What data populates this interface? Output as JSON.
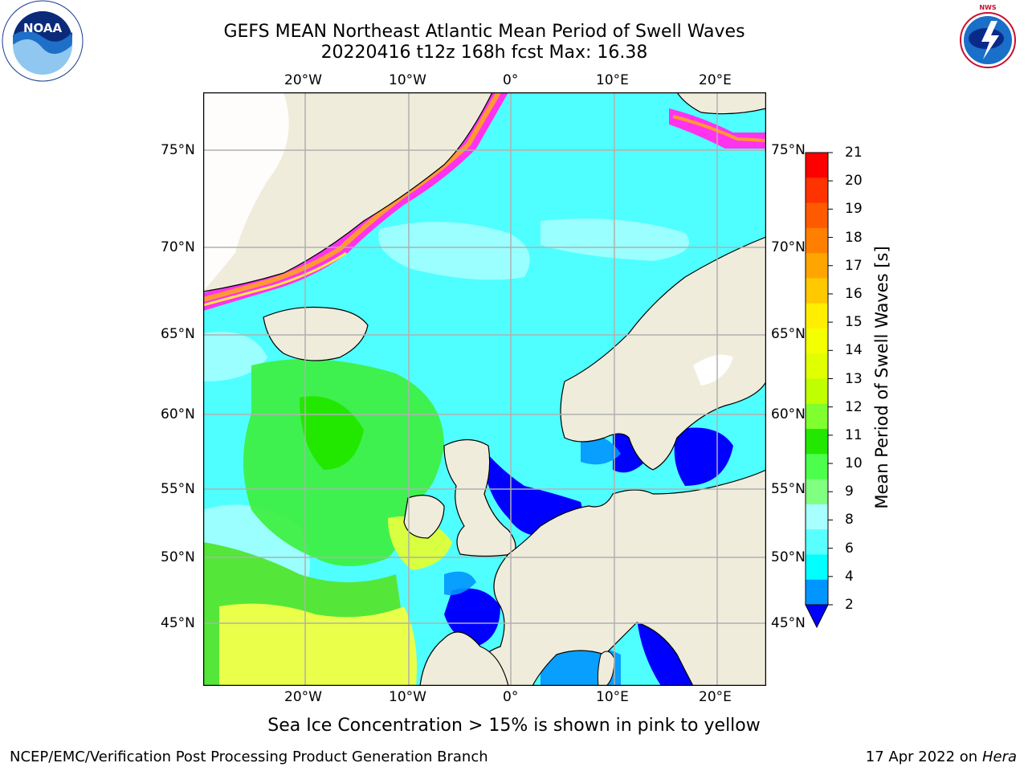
{
  "title": {
    "line1": "GEFS MEAN Northeast Atlantic Mean Period of Swell Waves",
    "line2": "20220416 t12z 168h fcst   Max: 16.38"
  },
  "logos": {
    "left": "noaa-logo",
    "right": "national-weather-service-logo",
    "noaa_text": "NOAA",
    "nws_text": "NATIONAL WEATHER SERVICE"
  },
  "map": {
    "lon_ticks_top": [
      "20°W",
      "10°W",
      "0°",
      "10°E",
      "20°E"
    ],
    "lon_ticks_bottom": [
      "20°W",
      "10°W",
      "0°",
      "10°E",
      "20°E"
    ],
    "lat_ticks_left": [
      "75°N",
      "70°N",
      "65°N",
      "60°N",
      "55°N",
      "50°N",
      "45°N"
    ],
    "lat_ticks_right": [
      "75°N",
      "70°N",
      "65°N",
      "60°N",
      "55°N",
      "50°N",
      "45°N"
    ],
    "colors": {
      "land": "#efecdb",
      "ice_pink": "#ff33ee",
      "ice_orange": "#ff9933",
      "ice_yellow": "#ffe84a",
      "grid": "#b0b0b0"
    }
  },
  "colorbar": {
    "label": "Mean Period of Swell Waves [s]",
    "ticks": [
      "21",
      "20",
      "19",
      "18",
      "17",
      "16",
      "15",
      "14",
      "13",
      "12",
      "11",
      "10",
      "9",
      "8",
      "6",
      "4",
      "2"
    ],
    "colors": [
      "#ff0000",
      "#ff3300",
      "#ff5a00",
      "#ff8000",
      "#ffa500",
      "#ffc800",
      "#ffee00",
      "#f4ff00",
      "#e0ff00",
      "#c0ff00",
      "#80ff30",
      "#22e800",
      "#4cff4c",
      "#80ff80",
      "#a8ffff",
      "#59ffff",
      "#00ffff",
      "#0095ff",
      "#0000ff"
    ]
  },
  "caption": "Sea Ice Concentration > 15% is shown in pink to yellow",
  "footer": {
    "left": "NCEP/EMC/Verification Post Processing Product Generation Branch",
    "right_date": "17 Apr 2022 on ",
    "right_host": "Hera"
  }
}
